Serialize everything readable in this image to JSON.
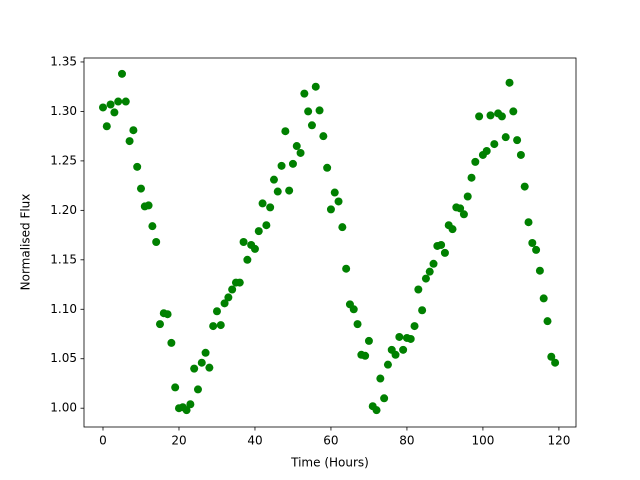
{
  "chart_data": {
    "type": "scatter",
    "x_label": "Time (Hours)",
    "y_label": "Normalised Flux",
    "color": "#008000",
    "xlim": [
      -5,
      124.5
    ],
    "ylim": [
      0.981,
      1.354
    ],
    "xticks": [
      0,
      20,
      40,
      60,
      80,
      100,
      120
    ],
    "yticks": [
      {
        "value": 1.0,
        "label": "1.00"
      },
      {
        "value": 1.05,
        "label": "1.05"
      },
      {
        "value": 1.1,
        "label": "1.10"
      },
      {
        "value": 1.15,
        "label": "1.15"
      },
      {
        "value": 1.2,
        "label": "1.20"
      },
      {
        "value": 1.25,
        "label": "1.25"
      },
      {
        "value": 1.3,
        "label": "1.30"
      },
      {
        "value": 1.35,
        "label": "1.35"
      }
    ],
    "grid": false,
    "x": [
      0,
      1,
      2,
      3,
      4,
      5,
      6,
      7,
      8,
      9,
      10,
      11,
      12,
      13,
      14,
      15,
      16,
      17,
      18,
      19,
      20,
      21,
      22,
      23,
      24,
      25,
      26,
      27,
      28,
      29,
      30,
      31,
      32,
      33,
      34,
      35,
      36,
      37,
      38,
      39,
      40,
      41,
      42,
      43,
      44,
      45,
      46,
      47,
      48,
      49,
      50,
      51,
      52,
      53,
      54,
      55,
      56,
      57,
      58,
      59,
      60,
      61,
      62,
      63,
      64,
      65,
      66,
      67,
      68,
      69,
      70,
      71,
      72,
      73,
      74,
      75,
      76,
      77,
      78,
      79,
      80,
      81,
      82,
      83,
      84,
      85,
      86,
      87,
      88,
      89,
      90,
      91,
      92,
      93,
      94,
      95,
      96,
      97,
      98,
      99,
      100,
      101,
      102,
      103,
      104,
      105,
      106,
      107,
      108,
      109,
      110,
      111,
      112,
      113,
      114,
      115,
      116,
      117,
      118,
      119
    ],
    "values": [
      1.304,
      1.285,
      1.307,
      1.299,
      1.31,
      1.338,
      1.31,
      1.27,
      1.281,
      1.244,
      1.222,
      1.204,
      1.205,
      1.184,
      1.168,
      1.085,
      1.096,
      1.095,
      1.066,
      1.021,
      1.0,
      1.001,
      0.998,
      1.004,
      1.04,
      1.019,
      1.046,
      1.056,
      1.041,
      1.083,
      1.098,
      1.084,
      1.106,
      1.112,
      1.12,
      1.127,
      1.127,
      1.168,
      1.15,
      1.165,
      1.161,
      1.179,
      1.207,
      1.185,
      1.203,
      1.231,
      1.219,
      1.245,
      1.28,
      1.22,
      1.247,
      1.265,
      1.258,
      1.318,
      1.3,
      1.286,
      1.325,
      1.301,
      1.275,
      1.243,
      1.201,
      1.218,
      1.209,
      1.183,
      1.141,
      1.105,
      1.1,
      1.085,
      1.054,
      1.053,
      1.068,
      1.002,
      0.998,
      1.03,
      1.01,
      1.044,
      1.059,
      1.054,
      1.072,
      1.059,
      1.071,
      1.07,
      1.083,
      1.12,
      1.099,
      1.131,
      1.138,
      1.146,
      1.164,
      1.165,
      1.157,
      1.185,
      1.181,
      1.203,
      1.202,
      1.196,
      1.214,
      1.233,
      1.249,
      1.295,
      1.256,
      1.26,
      1.296,
      1.267,
      1.298,
      1.295,
      1.274,
      1.329,
      1.3,
      1.271,
      1.256,
      1.224,
      1.188,
      1.167,
      1.16,
      1.139,
      1.111,
      1.088,
      1.052,
      1.046
    ]
  }
}
